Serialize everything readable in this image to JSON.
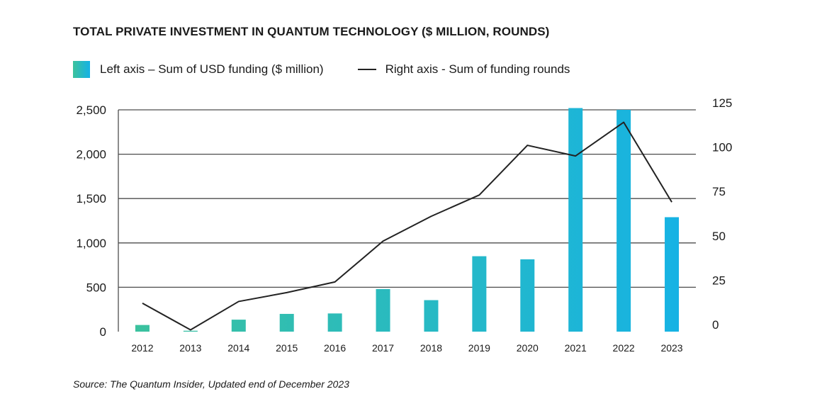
{
  "chart_data": {
    "type": "bar",
    "title": "TOTAL PRIVATE INVESTMENT IN QUANTUM TECHNOLOGY ($ MILLION, ROUNDS)",
    "categories": [
      "2012",
      "2013",
      "2014",
      "2015",
      "2016",
      "2017",
      "2018",
      "2019",
      "2020",
      "2021",
      "2022",
      "2023"
    ],
    "series": [
      {
        "name": "Left axis – Sum of USD funding ($ million)",
        "type": "bar",
        "axis": "left",
        "values": [
          75,
          10,
          135,
          200,
          205,
          480,
          355,
          850,
          815,
          2520,
          2500,
          1290
        ]
      },
      {
        "name": "Right axis - Sum of funding rounds",
        "type": "line",
        "axis": "right",
        "values": [
          16,
          1,
          17,
          22,
          28,
          51,
          65,
          77,
          105,
          99,
          118,
          73
        ]
      }
    ],
    "left_axis": {
      "ylim": [
        0,
        2500
      ],
      "ticks": [
        0,
        500,
        1000,
        1500,
        2000,
        2500
      ],
      "tick_labels": [
        "0",
        "500",
        "1,000",
        "1,500",
        "2,000",
        "2,500"
      ]
    },
    "right_axis": {
      "ylim": [
        0,
        125
      ],
      "ticks": [
        0,
        25,
        50,
        75,
        100,
        125
      ],
      "tick_labels": [
        "0",
        "25",
        "50",
        "75",
        "100",
        "125"
      ]
    },
    "grid": true,
    "legend_position": "top-left",
    "colors": {
      "bar_start": "#3cc29c",
      "bar_end": "#15b2e6",
      "line": "#222222",
      "grid": "#4d4d4d"
    }
  },
  "source": "Source: The Quantum Insider, Updated end of December 2023"
}
